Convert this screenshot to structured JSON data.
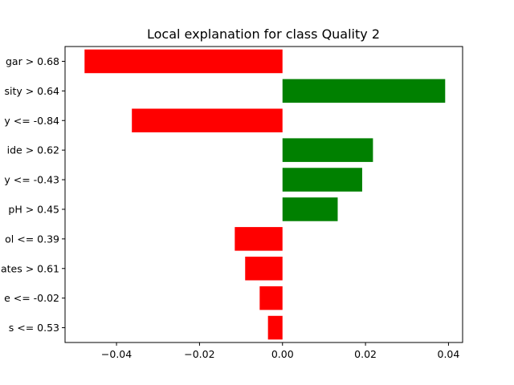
{
  "chart_data": {
    "type": "bar",
    "orientation": "horizontal",
    "title": "Local explanation for class Quality 2",
    "xlabel": "",
    "ylabel": "",
    "xlim": [
      -0.0524,
      0.0434
    ],
    "xticks": [
      -0.04,
      -0.02,
      0.0,
      0.02,
      0.04
    ],
    "xtick_labels": [
      "−0.04",
      "−0.02",
      "0.00",
      "0.02",
      "0.04"
    ],
    "grid": false,
    "categories": [
      "gar > 0.68",
      "sity > 0.64",
      "y <= -0.84",
      "ide > 0.62",
      "y <= -0.43",
      "pH > 0.45",
      "ol <= 0.39",
      "ates > 0.61",
      "e <= -0.02",
      "s <= 0.53"
    ],
    "values": [
      -0.0477,
      0.0392,
      -0.0363,
      0.0218,
      0.0192,
      0.0133,
      -0.0115,
      -0.009,
      -0.0055,
      -0.0035
    ],
    "colors": {
      "positive": "#008000",
      "negative": "#ff0000"
    }
  }
}
